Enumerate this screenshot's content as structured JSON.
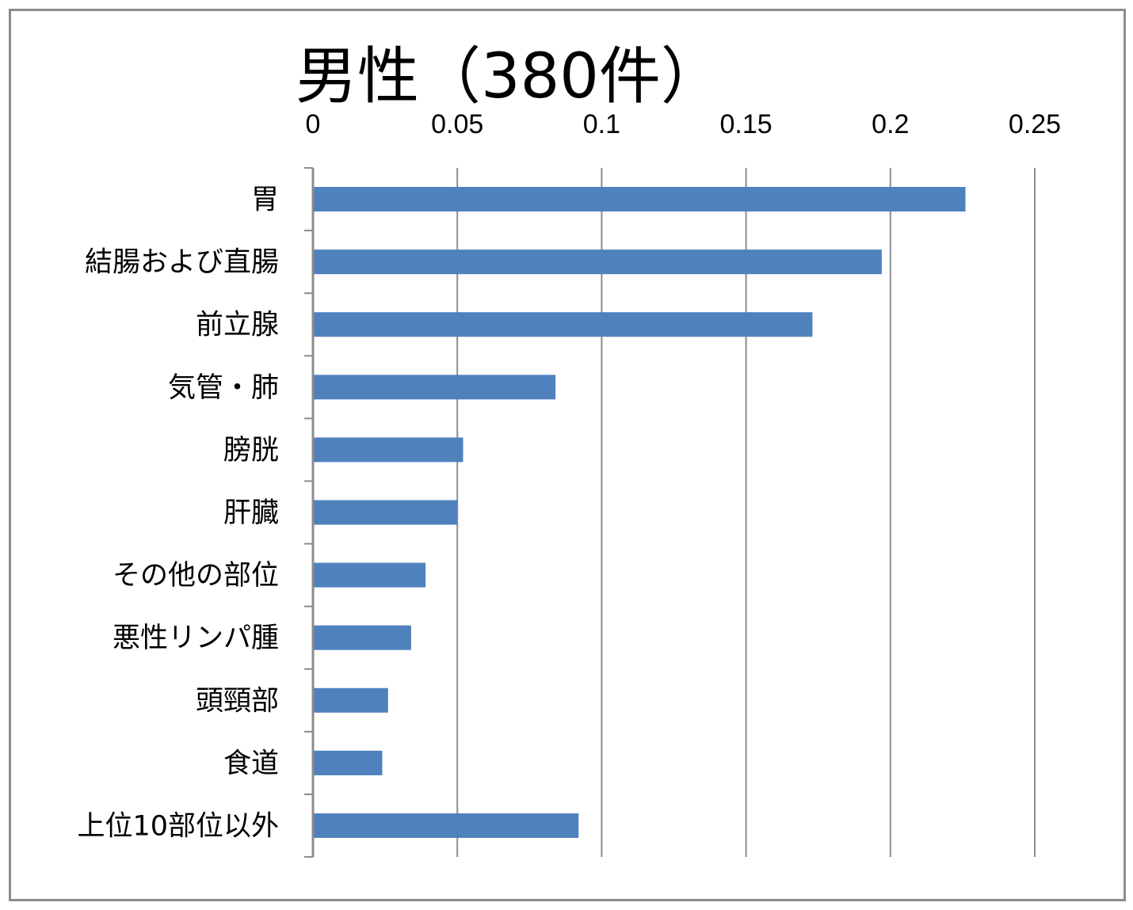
{
  "chart_data": {
    "type": "bar",
    "orientation": "horizontal",
    "title": "男性（380件）",
    "categories": [
      "胃",
      "結腸および直腸",
      "前立腺",
      "気管・肺",
      "膀胱",
      "肝臓",
      "その他の部位",
      "悪性リンパ腫",
      "頭頸部",
      "食道",
      "上位10部位以外"
    ],
    "values": [
      0.226,
      0.197,
      0.173,
      0.084,
      0.052,
      0.05,
      0.039,
      0.034,
      0.026,
      0.024,
      0.092
    ],
    "xticks": [
      "0",
      "0.05",
      "0.1",
      "0.15",
      "0.2",
      "0.25"
    ],
    "xlim": [
      0,
      0.25
    ],
    "xaxis_position": "top",
    "grid": true,
    "bar_color": "#4f81bd",
    "grid_color": "#8c8c8c"
  }
}
